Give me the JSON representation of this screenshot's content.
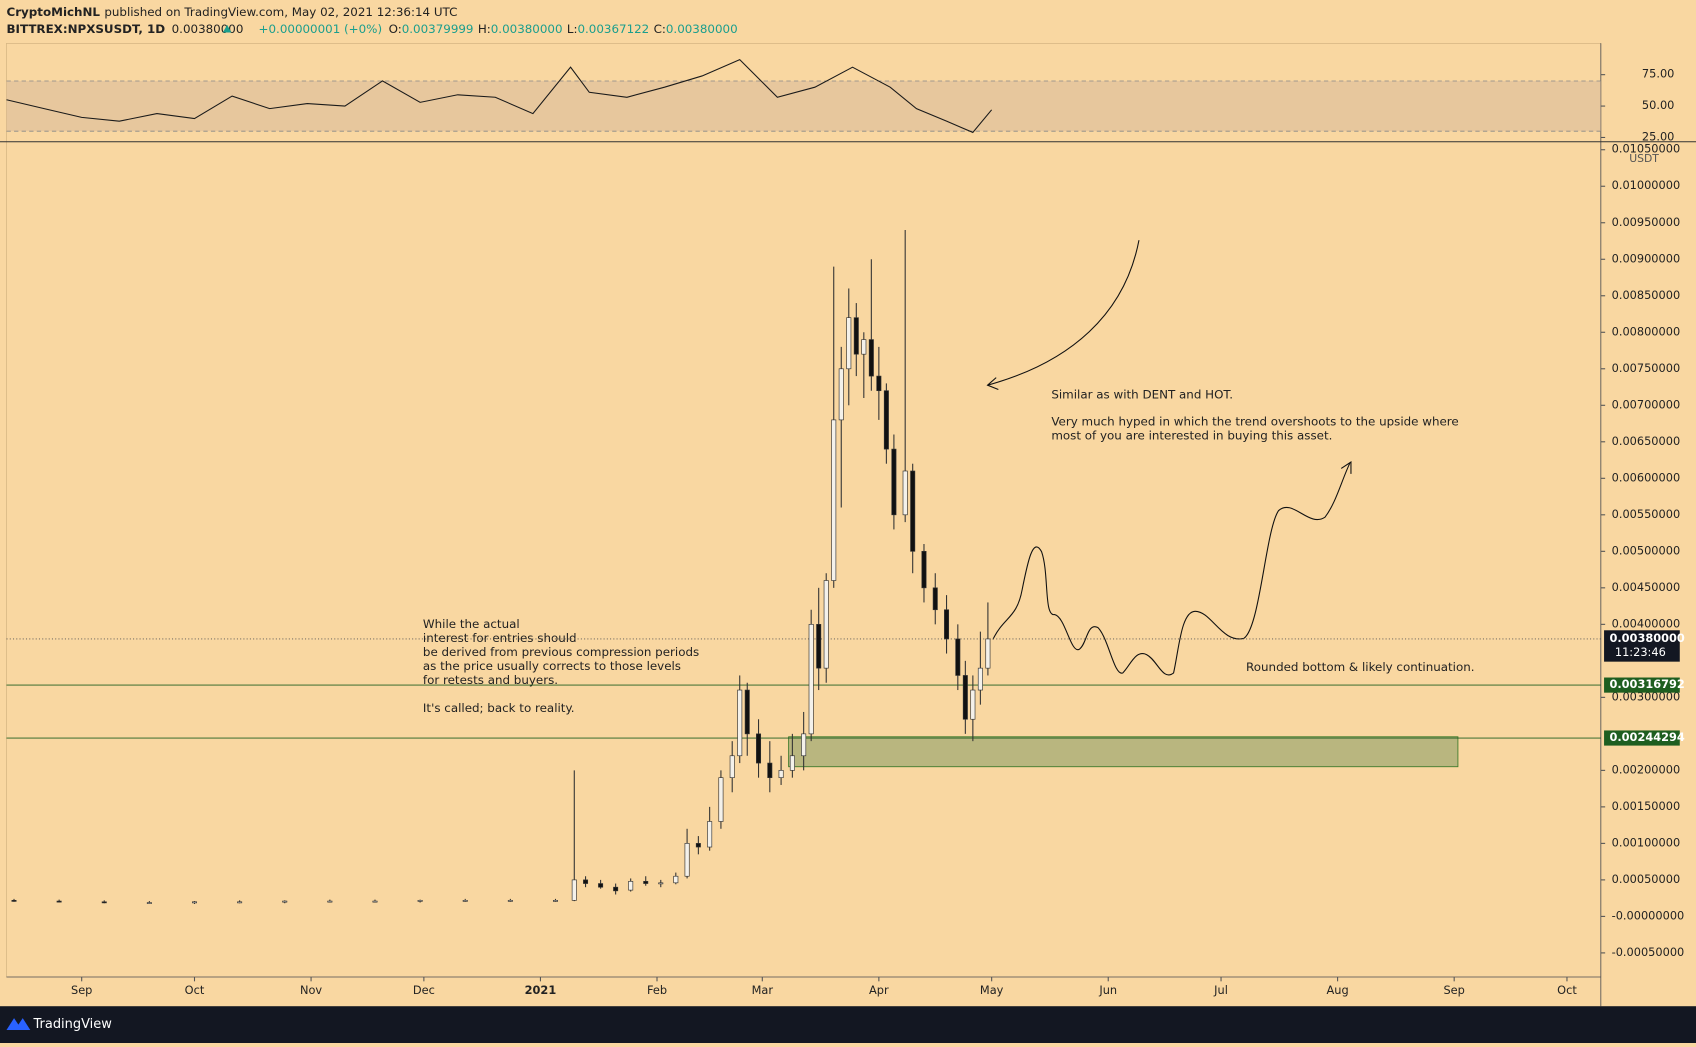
{
  "header": {
    "author": "CryptoMichNL",
    "published": "published on TradingView.com, May 02, 2021 12:36:14 UTC",
    "symbol": "BITTREX:NPXSUSDT, 1D",
    "last": "0.00380000",
    "change": "+0.00000001 (+0%)",
    "o_label": "O:",
    "o": "0.00379999",
    "h_label": "H:",
    "h": "0.00380000",
    "l_label": "L:",
    "l": "0.00367122",
    "c_label": "C:",
    "c": "0.00380000"
  },
  "annotations": {
    "top": [
      "Similar as with DENT and HOT.",
      "Very much hyped in which the trend overshoots to the upside where",
      "most of you are interested in buying this asset."
    ],
    "left": [
      "While the actual",
      "interest for entries should",
      "be derived from previous compression periods",
      "as the price usually corrects to those levels",
      "for retests and buyers.",
      "It's called; back to reality."
    ],
    "right": "Rounded bottom & likely continuation."
  },
  "footer": {
    "brand": "TradingView"
  },
  "chart_data": [
    {
      "type": "line",
      "color": "#1a1a1a",
      "band": [
        30,
        70
      ],
      "band_color": "#d9b99a",
      "xlim": [
        -20,
        404
      ],
      "ylim": [
        21.6,
        100
      ],
      "yticks": [
        {
          "value": 75,
          "label": "75.00"
        },
        {
          "value": 50,
          "label": "50.00"
        },
        {
          "value": 25,
          "label": "25.00"
        }
      ],
      "x": [
        -20,
        -10,
        0,
        10,
        20,
        30,
        40,
        50,
        60,
        70,
        80,
        90,
        100,
        110,
        120,
        130,
        135,
        145,
        155,
        165,
        175,
        185,
        195,
        205,
        215,
        222,
        230,
        237,
        242
      ],
      "values": [
        55,
        48,
        41,
        38,
        44,
        40,
        58,
        48,
        52,
        50,
        70,
        53,
        59,
        57,
        44,
        81,
        61,
        57,
        65,
        74,
        87,
        57,
        65,
        81,
        65,
        48,
        38,
        29,
        47
      ]
    },
    {
      "type": "candlestick",
      "currency": "USDT",
      "up_color": "#f4f1ea",
      "down_color": "#111111",
      "xlim": [
        -20,
        404
      ],
      "ylim": [
        -0.00083,
        0.01058
      ],
      "xticks": [
        {
          "value": 0,
          "label": "Sep"
        },
        {
          "value": 30,
          "label": "Oct"
        },
        {
          "value": 61,
          "label": "Nov"
        },
        {
          "value": 91,
          "label": "Dec"
        },
        {
          "value": 122,
          "label": "2021"
        },
        {
          "value": 153,
          "label": "Feb"
        },
        {
          "value": 181,
          "label": "Mar"
        },
        {
          "value": 212,
          "label": "Apr"
        },
        {
          "value": 242,
          "label": "May"
        },
        {
          "value": 273,
          "label": "Jun"
        },
        {
          "value": 303,
          "label": "Jul"
        },
        {
          "value": 334,
          "label": "Aug"
        },
        {
          "value": 365,
          "label": "Sep"
        },
        {
          "value": 395,
          "label": "Oct"
        }
      ],
      "yticks": [
        {
          "value": -0.0005,
          "label": "-0.00050000"
        },
        {
          "value": 0,
          "label": "-0.00000000"
        },
        {
          "value": 0.0005,
          "label": "0.00050000"
        },
        {
          "value": 0.001,
          "label": "0.00100000"
        },
        {
          "value": 0.0015,
          "label": "0.00150000"
        },
        {
          "value": 0.002,
          "label": "0.00200000"
        },
        {
          "value": 0.003,
          "label": "0.00300000"
        },
        {
          "value": 0.004,
          "label": "0.00400000"
        },
        {
          "value": 0.0045,
          "label": "0.00450000"
        },
        {
          "value": 0.005,
          "label": "0.00500000"
        },
        {
          "value": 0.0055,
          "label": "0.00550000"
        },
        {
          "value": 0.006,
          "label": "0.00600000"
        },
        {
          "value": 0.0065,
          "label": "0.00650000"
        },
        {
          "value": 0.007,
          "label": "0.00700000"
        },
        {
          "value": 0.0075,
          "label": "0.00750000"
        },
        {
          "value": 0.008,
          "label": "0.00800000"
        },
        {
          "value": 0.0085,
          "label": "0.00850000"
        },
        {
          "value": 0.009,
          "label": "0.00900000"
        },
        {
          "value": 0.0095,
          "label": "0.00950000"
        },
        {
          "value": 0.01,
          "label": "0.01000000"
        },
        {
          "value": 0.0105,
          "label": "0.01050000"
        }
      ],
      "x": [
        -18,
        -6,
        6,
        18,
        30,
        42,
        54,
        66,
        78,
        90,
        102,
        114,
        126,
        131,
        134,
        138,
        142,
        146,
        150,
        154,
        158,
        161,
        164,
        167,
        170,
        173,
        175,
        177,
        180,
        183,
        186,
        189,
        192,
        194,
        196,
        198,
        200,
        202,
        204,
        206,
        208,
        210,
        212,
        214,
        216,
        219,
        221,
        224,
        227,
        230,
        233,
        235,
        237,
        239,
        241
      ],
      "open": [
        0.00022,
        0.00021,
        0.0002,
        0.00019,
        0.00019,
        0.0002,
        0.0002,
        0.00021,
        0.00021,
        0.00021,
        0.00022,
        0.00022,
        0.00022,
        0.00022,
        0.0005,
        0.00045,
        0.0004,
        0.00036,
        0.00048,
        0.00045,
        0.00046,
        0.00055,
        0.001,
        0.00095,
        0.0013,
        0.0019,
        0.0022,
        0.0031,
        0.0025,
        0.0021,
        0.0019,
        0.002,
        0.0022,
        0.0025,
        0.004,
        0.0034,
        0.0046,
        0.0068,
        0.0075,
        0.0082,
        0.0077,
        0.0079,
        0.0074,
        0.0072,
        0.0064,
        0.0055,
        0.0061,
        0.005,
        0.0045,
        0.0042,
        0.0038,
        0.0033,
        0.0027,
        0.0031,
        0.0034
      ],
      "high": [
        0.00024,
        0.00023,
        0.00022,
        0.00021,
        0.00021,
        0.00022,
        0.00022,
        0.00023,
        0.00023,
        0.00023,
        0.00024,
        0.00024,
        0.00024,
        0.002,
        0.00055,
        0.0005,
        0.00045,
        0.00052,
        0.00055,
        0.0005,
        0.0006,
        0.0012,
        0.0011,
        0.0015,
        0.002,
        0.0024,
        0.0033,
        0.0032,
        0.0027,
        0.0024,
        0.0022,
        0.0025,
        0.0028,
        0.0042,
        0.0045,
        0.0047,
        0.0089,
        0.0078,
        0.0086,
        0.0084,
        0.008,
        0.009,
        0.0078,
        0.0073,
        0.0066,
        0.0094,
        0.0062,
        0.0051,
        0.0047,
        0.0044,
        0.004,
        0.0035,
        0.0033,
        0.0039,
        0.0043
      ],
      "low": [
        0.0002,
        0.00019,
        0.00018,
        0.00017,
        0.00017,
        0.00018,
        0.00018,
        0.00019,
        0.00019,
        0.00019,
        0.0002,
        0.0002,
        0.0002,
        0.00021,
        0.0004,
        0.00038,
        0.0003,
        0.00034,
        0.00042,
        0.0004,
        0.00044,
        0.00052,
        0.00085,
        0.0009,
        0.0012,
        0.0017,
        0.0021,
        0.0022,
        0.0019,
        0.0017,
        0.0018,
        0.0019,
        0.002,
        0.0024,
        0.0031,
        0.0032,
        0.0045,
        0.0056,
        0.007,
        0.0074,
        0.0071,
        0.0072,
        0.0068,
        0.0062,
        0.0053,
        0.0054,
        0.0047,
        0.0043,
        0.004,
        0.0036,
        0.0031,
        0.0025,
        0.0024,
        0.0029,
        0.0033
      ],
      "close": [
        0.00021,
        0.0002,
        0.00019,
        0.00019,
        0.0002,
        0.0002,
        0.00021,
        0.00021,
        0.00021,
        0.00022,
        0.00022,
        0.00022,
        0.00022,
        0.0005,
        0.00045,
        0.0004,
        0.00035,
        0.00048,
        0.00045,
        0.00046,
        0.00055,
        0.001,
        0.00095,
        0.0013,
        0.0019,
        0.0022,
        0.0031,
        0.0025,
        0.0021,
        0.0019,
        0.002,
        0.0022,
        0.0025,
        0.004,
        0.0034,
        0.0046,
        0.0068,
        0.0075,
        0.0082,
        0.0077,
        0.0079,
        0.0074,
        0.0072,
        0.0064,
        0.0055,
        0.0061,
        0.005,
        0.0045,
        0.0042,
        0.0038,
        0.0033,
        0.0027,
        0.0031,
        0.0034,
        0.0038
      ],
      "zone": {
        "x": [
          188,
          366
        ],
        "y": [
          0.00205,
          0.00246
        ],
        "color": "#b9b67f"
      },
      "price_lines": [
        {
          "value": 0.00316792,
          "label": "0.00316792",
          "color": "#1e5e20"
        },
        {
          "value": 0.00244294,
          "label": "0.00244294",
          "color": "#1e5e20"
        }
      ],
      "last": {
        "value": 0.0038,
        "label": "0.00380000",
        "countdown": "11:23:46"
      }
    }
  ]
}
